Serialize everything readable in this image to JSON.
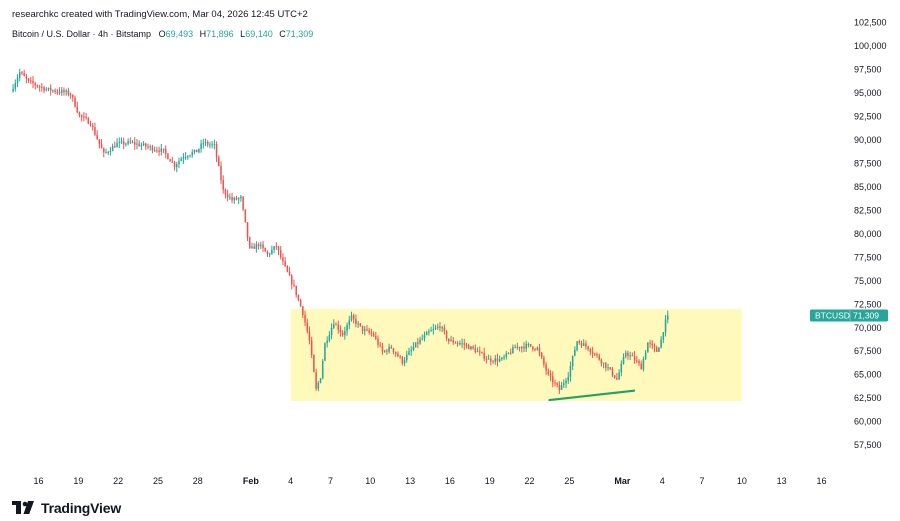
{
  "header": {
    "credit": "researchkc created with TradingView.com, Mar 04, 2026 12:45 UTC+2",
    "symbol_desc": "Bitcoin / U.S. Dollar · 4h · Bitstamp",
    "open_label": "O",
    "open_value": "69,493",
    "high_label": "H",
    "high_value": "71,896",
    "low_label": "L",
    "low_value": "69,140",
    "close_label": "C",
    "close_value": "71,309"
  },
  "price_tag": {
    "symbol": "BTCUSD",
    "price": "71,309"
  },
  "footer": {
    "brand": "TradingView",
    "logo_icon": "tradingview-logo-icon"
  },
  "colors": {
    "up": "#26a69a",
    "down": "#ef5350",
    "range_box": "#fff9b0",
    "trendline": "#22a06b",
    "tag_bg": "#26a69a",
    "axis_text": "#131722"
  },
  "chart_data": {
    "type": "candlestick",
    "title": "",
    "xlabel": "",
    "ylabel": "",
    "ylim": [
      55700,
      103000
    ],
    "y_tick_values": [
      57500,
      60000,
      62500,
      65000,
      67500,
      70000,
      72500,
      75000,
      77500,
      80000,
      82500,
      85000,
      87500,
      90000,
      92500,
      95000,
      97500,
      100000,
      102500
    ],
    "y_tick_labels": [
      "57,500",
      "60,000",
      "62,500",
      "65,000",
      "67,500",
      "70,000",
      "72,500",
      "75,000",
      "77,500",
      "80,000",
      "82,500",
      "85,000",
      "87,500",
      "90,000",
      "92,500",
      "95,000",
      "97,500",
      "100,000",
      "102,500"
    ],
    "x_ticks": [
      {
        "label": "16",
        "date": "2026-01-16"
      },
      {
        "label": "19",
        "date": "2026-01-19"
      },
      {
        "label": "22",
        "date": "2026-01-22"
      },
      {
        "label": "25",
        "date": "2026-01-25"
      },
      {
        "label": "28",
        "date": "2026-01-28"
      },
      {
        "label": "Feb",
        "date": "2026-02-01"
      },
      {
        "label": "4",
        "date": "2026-02-04"
      },
      {
        "label": "7",
        "date": "2026-02-07"
      },
      {
        "label": "10",
        "date": "2026-02-10"
      },
      {
        "label": "13",
        "date": "2026-02-13"
      },
      {
        "label": "16",
        "date": "2026-02-16"
      },
      {
        "label": "19",
        "date": "2026-02-19"
      },
      {
        "label": "22",
        "date": "2026-02-22"
      },
      {
        "label": "25",
        "date": "2026-02-25"
      },
      {
        "label": "Mar",
        "date": "2026-03-01"
      },
      {
        "label": "4",
        "date": "2026-03-04"
      },
      {
        "label": "7",
        "date": "2026-03-07"
      },
      {
        "label": "10",
        "date": "2026-03-10"
      },
      {
        "label": "13",
        "date": "2026-03-13"
      },
      {
        "label": "16",
        "date": "2026-03-16"
      }
    ],
    "x_range": [
      "2026-01-14T00:00",
      "2026-03-18T00:00"
    ],
    "grid": false,
    "path_keypoints": [
      [
        "2026-01-14T00:00",
        95200
      ],
      [
        "2026-01-14T16:00",
        97200
      ],
      [
        "2026-01-15T08:00",
        96200
      ],
      [
        "2026-01-16T16:00",
        95400
      ],
      [
        "2026-01-18T00:00",
        95100
      ],
      [
        "2026-01-18T12:00",
        94900
      ],
      [
        "2026-01-19T04:00",
        92600
      ],
      [
        "2026-01-20T00:00",
        91800
      ],
      [
        "2026-01-21T00:00",
        88500
      ],
      [
        "2026-01-22T00:00",
        89600
      ],
      [
        "2026-01-23T00:00",
        89700
      ],
      [
        "2026-01-24T00:00",
        89400
      ],
      [
        "2026-01-25T12:00",
        88800
      ],
      [
        "2026-01-26T08:00",
        87300
      ],
      [
        "2026-01-27T00:00",
        88300
      ],
      [
        "2026-01-28T00:00",
        88800
      ],
      [
        "2026-01-28T12:00",
        89700
      ],
      [
        "2026-01-29T08:00",
        89400
      ],
      [
        "2026-01-30T00:00",
        84600
      ],
      [
        "2026-01-30T16:00",
        83600
      ],
      [
        "2026-01-31T08:00",
        83800
      ],
      [
        "2026-02-01T00:00",
        78300
      ],
      [
        "2026-02-01T16:00",
        78900
      ],
      [
        "2026-02-02T08:00",
        77800
      ],
      [
        "2026-02-03T00:00",
        78700
      ],
      [
        "2026-02-03T12:00",
        76900
      ],
      [
        "2026-02-04T08:00",
        74300
      ],
      [
        "2026-02-05T00:00",
        71600
      ],
      [
        "2026-02-05T12:00",
        68600
      ],
      [
        "2026-02-06T00:00",
        63400
      ],
      [
        "2026-02-06T08:00",
        64800
      ],
      [
        "2026-02-06T16:00",
        68300
      ],
      [
        "2026-02-07T08:00",
        70600
      ],
      [
        "2026-02-08T00:00",
        69300
      ],
      [
        "2026-02-08T16:00",
        71100
      ],
      [
        "2026-02-09T12:00",
        69800
      ],
      [
        "2026-02-10T08:00",
        69200
      ],
      [
        "2026-02-11T00:00",
        67400
      ],
      [
        "2026-02-11T16:00",
        67900
      ],
      [
        "2026-02-12T12:00",
        66400
      ],
      [
        "2026-02-13T12:00",
        68200
      ],
      [
        "2026-02-14T12:00",
        69500
      ],
      [
        "2026-02-15T08:00",
        70200
      ],
      [
        "2026-02-16T00:00",
        68600
      ],
      [
        "2026-02-17T00:00",
        68300
      ],
      [
        "2026-02-18T00:00",
        67600
      ],
      [
        "2026-02-19T00:00",
        66600
      ],
      [
        "2026-02-20T00:00",
        66600
      ],
      [
        "2026-02-21T00:00",
        67900
      ],
      [
        "2026-02-22T00:00",
        68100
      ],
      [
        "2026-02-22T16:00",
        67800
      ],
      [
        "2026-02-23T12:00",
        64900
      ],
      [
        "2026-02-24T08:00",
        63400
      ],
      [
        "2026-02-25T00:00",
        65000
      ],
      [
        "2026-02-25T16:00",
        68600
      ],
      [
        "2026-02-26T12:00",
        67900
      ],
      [
        "2026-02-27T08:00",
        66700
      ],
      [
        "2026-02-28T00:00",
        65700
      ],
      [
        "2026-02-28T16:00",
        64500
      ],
      [
        "2026-03-01T08:00",
        67400
      ],
      [
        "2026-03-02T00:00",
        66600
      ],
      [
        "2026-03-02T12:00",
        65800
      ],
      [
        "2026-03-03T00:00",
        68400
      ],
      [
        "2026-03-03T16:00",
        67500
      ],
      [
        "2026-03-04T00:00",
        68700
      ],
      [
        "2026-03-04T06:00",
        70300
      ],
      [
        "2026-03-04T12:00",
        71309
      ]
    ],
    "annotations": {
      "range_box": {
        "from": "2026-02-04T00:00",
        "to": "2026-03-10T00:00",
        "y_low": 62200,
        "y_high": 72000
      },
      "trendline": {
        "from": [
          "2026-02-23T12:00",
          62300
        ],
        "to": [
          "2026-02-29T21:00",
          63300
        ]
      }
    },
    "last_price": 71309,
    "series": [
      {
        "name": "BTCUSD",
        "open": 69493,
        "high": 71896,
        "low": 69140,
        "close": 71309
      }
    ]
  }
}
